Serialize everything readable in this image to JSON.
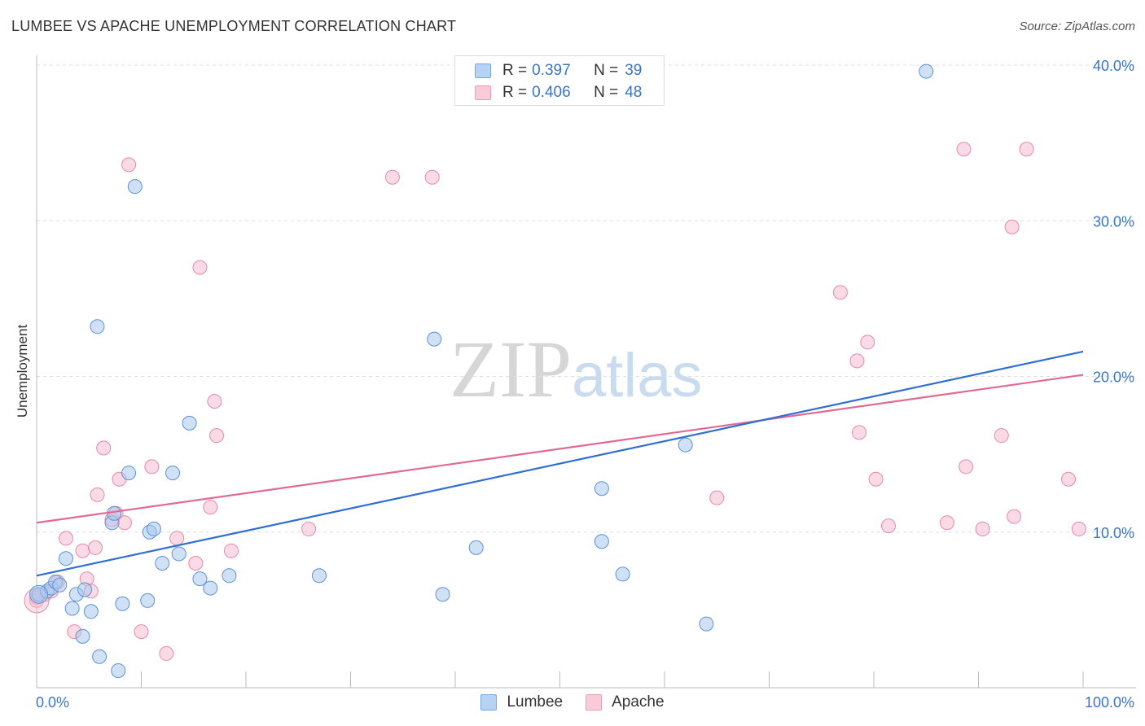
{
  "header": {
    "title": "LUMBEE VS APACHE UNEMPLOYMENT CORRELATION CHART",
    "source": "Source: ZipAtlas.com"
  },
  "watermark": {
    "zip": "ZIP",
    "atlas": "atlas"
  },
  "legend": {
    "rows": [
      {
        "r_label": "R =",
        "r_value": "0.397",
        "n_label": "N =",
        "n_value": "39"
      },
      {
        "r_label": "R =",
        "r_value": "0.406",
        "n_label": "N =",
        "n_value": "48"
      }
    ]
  },
  "colors": {
    "lumbee_fill": "#aac9ef",
    "lumbee_stroke": "#5b93d6",
    "lumbee_line": "#2f6fcf",
    "apache_fill": "#f6bccd",
    "apache_stroke": "#e88aa8",
    "apache_line": "#e06a93",
    "tick_label": "#3a74c4",
    "grid": "#dddddd"
  },
  "chart_data": {
    "type": "scatter",
    "title": "LUMBEE VS APACHE UNEMPLOYMENT CORRELATION CHART",
    "xlabel": "",
    "ylabel": "Unemployment",
    "xlim": [
      0,
      100
    ],
    "ylim": [
      0,
      40
    ],
    "x_tick_labels": [
      "0.0%",
      "100.0%"
    ],
    "y_ticks": [
      10,
      20,
      30,
      40
    ],
    "y_tick_labels": [
      "10.0%",
      "20.0%",
      "30.0%",
      "40.0%"
    ],
    "grid": true,
    "legend_position": "bottom-center",
    "series": [
      {
        "name": "Lumbee",
        "r": 0.397,
        "n": 39,
        "trend": [
          [
            0,
            7.2
          ],
          [
            100,
            21.6
          ]
        ],
        "points": [
          [
            0.2,
            6.0
          ],
          [
            1.0,
            6.2
          ],
          [
            1.4,
            6.4
          ],
          [
            1.8,
            6.8
          ],
          [
            2.2,
            6.6
          ],
          [
            2.8,
            8.3
          ],
          [
            3.4,
            5.1
          ],
          [
            3.8,
            6.0
          ],
          [
            4.4,
            3.3
          ],
          [
            4.6,
            6.3
          ],
          [
            5.2,
            4.9
          ],
          [
            5.8,
            23.2
          ],
          [
            6.0,
            2.0
          ],
          [
            7.2,
            10.6
          ],
          [
            7.4,
            11.2
          ],
          [
            7.8,
            1.1
          ],
          [
            8.2,
            5.4
          ],
          [
            8.8,
            13.8
          ],
          [
            9.4,
            32.2
          ],
          [
            10.6,
            5.6
          ],
          [
            10.8,
            10.0
          ],
          [
            11.2,
            10.2
          ],
          [
            12.0,
            8.0
          ],
          [
            13.0,
            13.8
          ],
          [
            13.6,
            8.6
          ],
          [
            14.6,
            17.0
          ],
          [
            15.6,
            7.0
          ],
          [
            16.6,
            6.4
          ],
          [
            18.4,
            7.2
          ],
          [
            27.0,
            7.2
          ],
          [
            38.0,
            22.4
          ],
          [
            38.8,
            6.0
          ],
          [
            42.0,
            9.0
          ],
          [
            54.0,
            12.8
          ],
          [
            54.0,
            9.4
          ],
          [
            56.0,
            7.3
          ],
          [
            62.0,
            15.6
          ],
          [
            64.0,
            4.1
          ],
          [
            85.0,
            39.6
          ]
        ]
      },
      {
        "name": "Apache",
        "r": 0.406,
        "n": 48,
        "trend": [
          [
            0,
            10.6
          ],
          [
            100,
            20.1
          ]
        ],
        "points": [
          [
            0.0,
            5.8
          ],
          [
            0.8,
            6.0
          ],
          [
            1.4,
            6.2
          ],
          [
            2.0,
            6.8
          ],
          [
            2.8,
            9.6
          ],
          [
            3.6,
            3.6
          ],
          [
            4.4,
            8.8
          ],
          [
            4.8,
            7.0
          ],
          [
            5.2,
            6.2
          ],
          [
            5.6,
            9.0
          ],
          [
            5.8,
            12.4
          ],
          [
            6.4,
            15.4
          ],
          [
            7.2,
            10.8
          ],
          [
            7.6,
            11.2
          ],
          [
            7.9,
            13.4
          ],
          [
            8.4,
            10.6
          ],
          [
            8.8,
            33.6
          ],
          [
            10.0,
            3.6
          ],
          [
            11.0,
            14.2
          ],
          [
            12.4,
            2.2
          ],
          [
            13.4,
            9.6
          ],
          [
            15.2,
            8.0
          ],
          [
            15.6,
            27.0
          ],
          [
            16.6,
            11.6
          ],
          [
            17.0,
            18.4
          ],
          [
            17.2,
            16.2
          ],
          [
            18.6,
            8.8
          ],
          [
            26.0,
            10.2
          ],
          [
            34.0,
            32.8
          ],
          [
            37.8,
            32.8
          ],
          [
            65.0,
            12.2
          ],
          [
            76.8,
            25.4
          ],
          [
            78.4,
            21.0
          ],
          [
            79.4,
            22.2
          ],
          [
            78.6,
            16.4
          ],
          [
            80.2,
            13.4
          ],
          [
            81.4,
            10.4
          ],
          [
            87.0,
            10.6
          ],
          [
            88.6,
            34.6
          ],
          [
            88.8,
            14.2
          ],
          [
            90.4,
            10.2
          ],
          [
            92.2,
            16.2
          ],
          [
            93.2,
            29.6
          ],
          [
            93.4,
            11.0
          ],
          [
            94.6,
            34.6
          ],
          [
            98.6,
            13.4
          ],
          [
            99.6,
            10.2
          ],
          [
            0.0,
            5.6
          ]
        ]
      }
    ]
  }
}
